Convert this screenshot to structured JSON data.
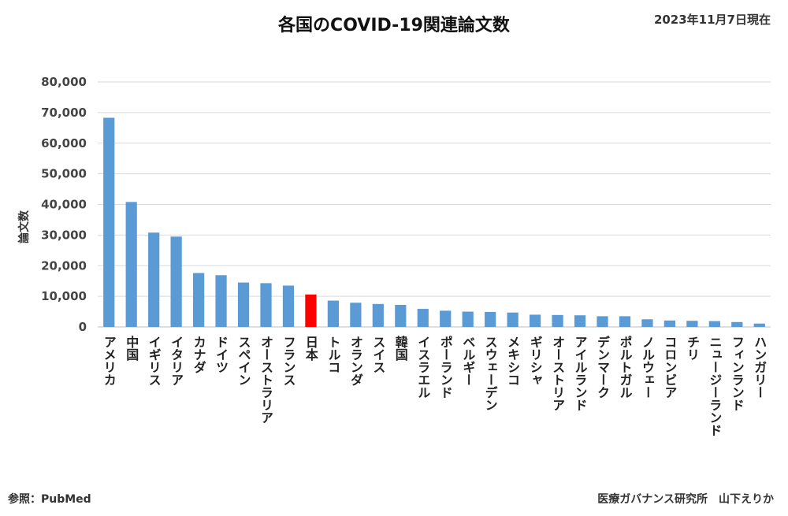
{
  "header": {
    "title": "各国のCOVID-19関連論文数",
    "date": "2023年11月7日現在"
  },
  "footer": {
    "source": "参照：PubMed",
    "credit": "医療ガバナンス研究所　山下えりか"
  },
  "colors": {
    "bar": "#5b9bd5",
    "highlight": "#ff0000",
    "grid": "#d9d9d9"
  },
  "chart_data": {
    "type": "bar",
    "title": "各国のCOVID-19関連論文数",
    "ylabel": "論文数",
    "xlabel": "",
    "ylim": [
      0,
      80000
    ],
    "yticks": [
      "0",
      "10,000",
      "20,000",
      "30,000",
      "40,000",
      "50,000",
      "60,000",
      "70,000",
      "80,000"
    ],
    "grid": true,
    "highlight_category": "日本",
    "categories": [
      "アメリカ",
      "中国",
      "イギリス",
      "イタリア",
      "カナダ",
      "ドイツ",
      "スペイン",
      "オーストラリア",
      "フランス",
      "日本",
      "トルコ",
      "オランダ",
      "スイス",
      "韓国",
      "イスラエル",
      "ポーランド",
      "ベルギー",
      "スウェーデン",
      "メキシコ",
      "ギリシャ",
      "オーストリア",
      "アイルランド",
      "デンマーク",
      "ポルトガル",
      "ノルウェー",
      "コロンビア",
      "チリ",
      "ニュージーランド",
      "フィンランド",
      "ハンガリー"
    ],
    "values": [
      68300,
      40800,
      30800,
      29500,
      17600,
      16900,
      14500,
      14300,
      13500,
      10600,
      8600,
      7900,
      7500,
      7200,
      5900,
      5300,
      5000,
      4900,
      4700,
      4000,
      3900,
      3800,
      3500,
      3500,
      2500,
      2100,
      2000,
      1900,
      1600,
      1100
    ]
  }
}
